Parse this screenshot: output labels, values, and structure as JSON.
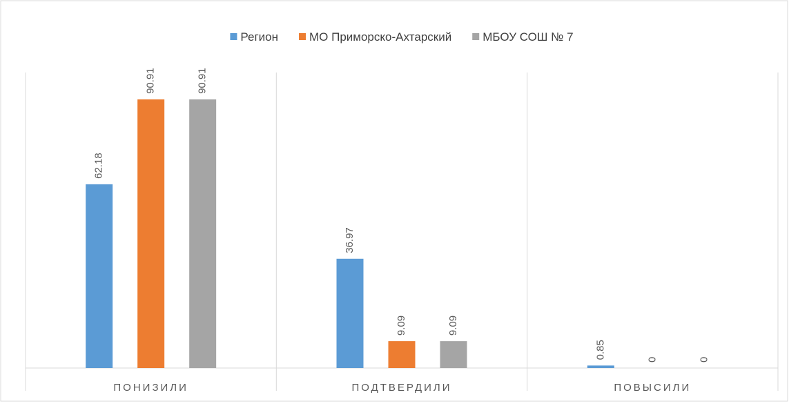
{
  "chart_data": {
    "type": "bar",
    "categories": [
      "ПОНИЗИЛИ",
      "ПОДТВЕРДИЛИ",
      "ПОВЫСИЛИ"
    ],
    "series": [
      {
        "name": "Регион",
        "color": "#5b9bd5",
        "values": [
          62.18,
          36.97,
          0.85
        ]
      },
      {
        "name": "МО Приморско-Ахтарский",
        "color": "#ed7d31",
        "values": [
          90.91,
          9.09,
          0
        ]
      },
      {
        "name": "МБОУ СОШ № 7",
        "color": "#a5a5a5",
        "values": [
          90.91,
          9.09,
          0
        ]
      }
    ],
    "ylim": [
      0,
      100
    ],
    "legend": "top"
  }
}
